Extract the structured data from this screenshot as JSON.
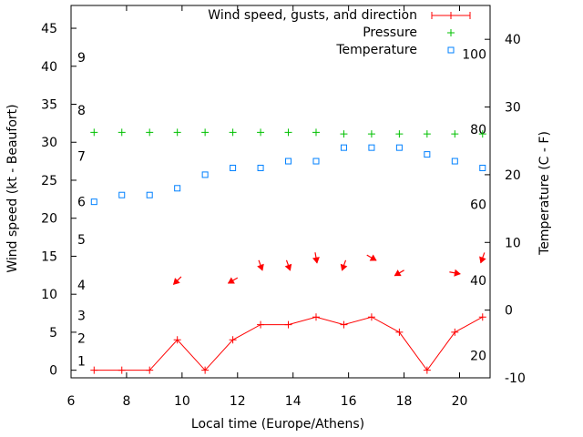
{
  "chart_data": {
    "type": "line",
    "xlabel": "Local time (Europe/Athens)",
    "ylabel": "Wind speed (kt - Beaufort)",
    "y2label": "Temperature (C - F)",
    "xlim": [
      6,
      21.1
    ],
    "ylim": [
      -1,
      48
    ],
    "y2lim": [
      -10,
      45
    ],
    "grid": false,
    "legend_position": "top-right",
    "x_ticks": [
      "6",
      "8",
      "10",
      "12",
      "14",
      "16",
      "18",
      "20"
    ],
    "y_ticks": [
      "0",
      "5",
      "10",
      "15",
      "20",
      "25",
      "30",
      "35",
      "40",
      "45"
    ],
    "y2_ticks": [
      "-10",
      "0",
      "10",
      "20",
      "30",
      "40"
    ],
    "beaufort_labels": [
      {
        "label": "1",
        "y": 1.2
      },
      {
        "label": "2",
        "y": 4.2
      },
      {
        "label": "3",
        "y": 7.2
      },
      {
        "label": "4",
        "y": 11.2
      },
      {
        "label": "5",
        "y": 17.2
      },
      {
        "label": "6",
        "y": 22.2
      },
      {
        "label": "7",
        "y": 28.2
      },
      {
        "label": "8",
        "y": 34.2
      },
      {
        "label": "9",
        "y": 41.2
      }
    ],
    "fahrenheit_labels": [
      {
        "label": "20",
        "c": -6.7
      },
      {
        "label": "40",
        "c": 4.4
      },
      {
        "label": "60",
        "c": 15.6
      },
      {
        "label": "80",
        "c": 26.7
      },
      {
        "label": "100",
        "c": 37.8
      }
    ],
    "colors": {
      "wind": "#ff0000",
      "pressure": "#00c000",
      "temperature": "#0080ff"
    },
    "series": [
      {
        "name": "Wind speed, gusts, and direction",
        "x": [
          6.83,
          7.83,
          8.83,
          9.83,
          10.83,
          11.83,
          12.83,
          13.83,
          14.83,
          15.83,
          16.83,
          17.83,
          18.83,
          19.83,
          20.83
        ],
        "values": [
          0,
          0,
          0,
          4,
          0,
          4,
          6,
          6,
          7,
          6,
          7,
          5,
          0,
          5,
          7
        ],
        "direction_deg": [
          null,
          null,
          null,
          45,
          null,
          60,
          340,
          340,
          350,
          20,
          300,
          60,
          null,
          280,
          20
        ]
      },
      {
        "name": "Pressure",
        "x": [
          6.83,
          7.83,
          8.83,
          9.83,
          10.83,
          11.83,
          12.83,
          13.83,
          14.83,
          15.83,
          16.83,
          17.83,
          18.83,
          19.83,
          20.83
        ],
        "values": [
          31.3,
          31.3,
          31.3,
          31.3,
          31.3,
          31.3,
          31.3,
          31.3,
          31.3,
          31.1,
          31.1,
          31.1,
          31.1,
          31.1,
          31.1
        ]
      },
      {
        "name": "Temperature",
        "x": [
          6.83,
          7.83,
          8.83,
          9.83,
          10.83,
          11.83,
          12.83,
          13.83,
          14.83,
          15.83,
          16.83,
          17.83,
          18.83,
          19.83,
          20.83
        ],
        "values": [
          16,
          17,
          17,
          18,
          20,
          21,
          21,
          22,
          22,
          24,
          24,
          24,
          23,
          22,
          21
        ]
      }
    ]
  }
}
